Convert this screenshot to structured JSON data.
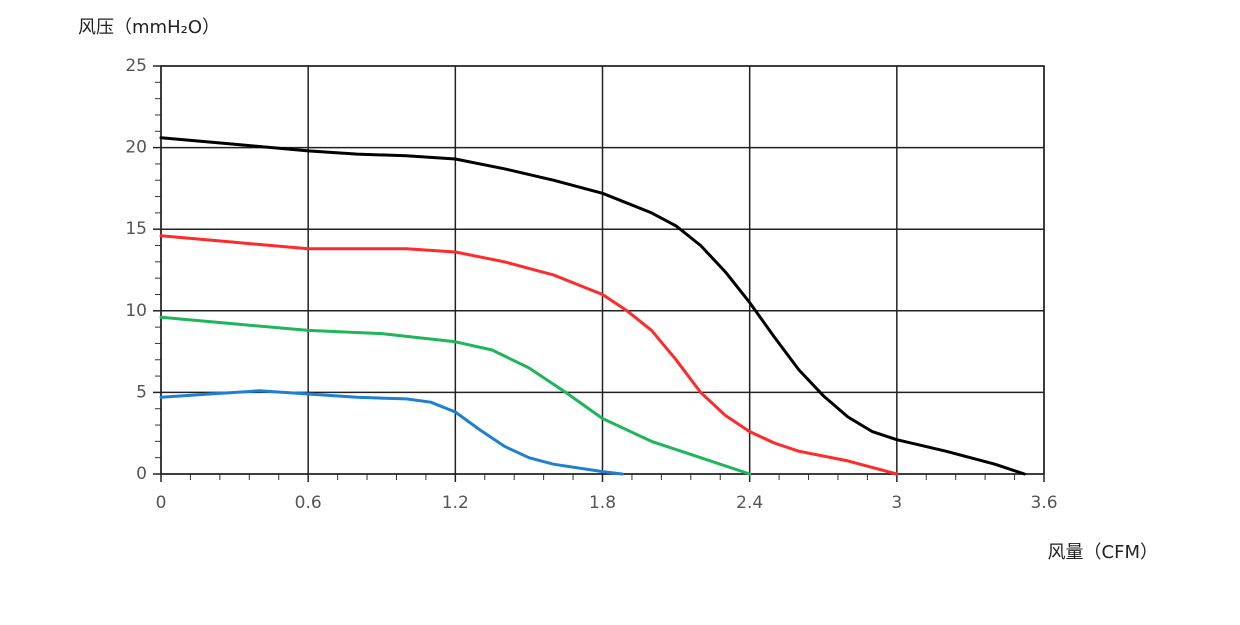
{
  "chart_data": {
    "type": "line",
    "ylabel": "风压（mmH₂O）",
    "xlabel": "风量（CFM）",
    "xlim": [
      0,
      3.6
    ],
    "xticks": [
      0,
      0.6,
      1.2,
      1.8,
      2.4,
      3,
      3.6
    ],
    "ylim": [
      0,
      25
    ],
    "yticks": [
      0,
      5,
      10,
      15,
      20,
      25
    ],
    "grid": true,
    "minor_divisions": 5,
    "series": [
      {
        "color": "#000000",
        "x": [
          0,
          0.3,
          0.6,
          0.8,
          1.0,
          1.2,
          1.4,
          1.6,
          1.8,
          2.0,
          2.1,
          2.2,
          2.3,
          2.4,
          2.5,
          2.6,
          2.7,
          2.8,
          2.9,
          3.0,
          3.2,
          3.4,
          3.52
        ],
        "values": [
          20.6,
          20.2,
          19.8,
          19.6,
          19.5,
          19.3,
          18.7,
          18.0,
          17.2,
          16.0,
          15.2,
          14.0,
          12.4,
          10.5,
          8.4,
          6.4,
          4.8,
          3.5,
          2.6,
          2.1,
          1.4,
          0.6,
          0
        ]
      },
      {
        "color": "#ff2a2a",
        "x": [
          0,
          0.3,
          0.6,
          0.8,
          1.0,
          1.2,
          1.4,
          1.6,
          1.8,
          1.9,
          2.0,
          2.1,
          2.2,
          2.3,
          2.4,
          2.5,
          2.6,
          2.8,
          3.0
        ],
        "values": [
          14.6,
          14.2,
          13.8,
          13.8,
          13.8,
          13.6,
          13.0,
          12.2,
          11.0,
          10.0,
          8.8,
          7.0,
          5.0,
          3.6,
          2.6,
          1.9,
          1.4,
          0.8,
          0
        ]
      },
      {
        "color": "#1fb55a",
        "x": [
          0,
          0.3,
          0.6,
          0.9,
          1.2,
          1.35,
          1.5,
          1.65,
          1.8,
          2.0,
          2.2,
          2.4
        ],
        "values": [
          9.6,
          9.2,
          8.8,
          8.6,
          8.1,
          7.6,
          6.5,
          5.0,
          3.4,
          2.0,
          1.0,
          0
        ]
      },
      {
        "color": "#1f7fd0",
        "x": [
          0,
          0.2,
          0.4,
          0.6,
          0.8,
          1.0,
          1.1,
          1.2,
          1.3,
          1.4,
          1.5,
          1.6,
          1.8,
          1.88
        ],
        "values": [
          4.7,
          4.9,
          5.1,
          4.9,
          4.7,
          4.6,
          4.4,
          3.8,
          2.7,
          1.7,
          1.0,
          0.6,
          0.15,
          0
        ]
      }
    ]
  }
}
